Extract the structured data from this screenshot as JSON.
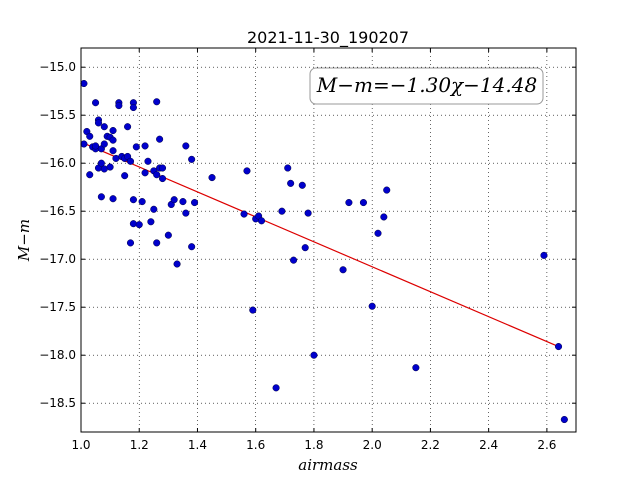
{
  "chart_data": {
    "type": "scatter",
    "title": "2021-11-30_190207",
    "xlabel": "airmass",
    "ylabel": "M−m",
    "xlim": [
      1.0,
      2.7
    ],
    "ylim": [
      -18.8,
      -14.8
    ],
    "xticks": [
      1.0,
      1.2,
      1.4,
      1.6,
      1.8,
      2.0,
      2.2,
      2.4,
      2.6
    ],
    "xtick_labels": [
      "1.0",
      "1.2",
      "1.4",
      "1.6",
      "1.8",
      "2.0",
      "2.2",
      "2.4",
      "2.6"
    ],
    "yticks": [
      -15.0,
      -15.5,
      -16.0,
      -16.5,
      -17.0,
      -17.5,
      -18.0,
      -18.5
    ],
    "ytick_labels": [
      "−15.0",
      "−15.5",
      "−16.0",
      "−16.5",
      "−17.0",
      "−17.5",
      "−18.0",
      "−18.5"
    ],
    "grid": true,
    "annotation": "M−m=−1.30χ−14.48",
    "annotation_position": "top-right",
    "point_color": "#0000cc",
    "fit_color": "#dd0000",
    "fit_line": {
      "x": [
        1.0,
        2.64
      ],
      "y": [
        -15.78,
        -17.91
      ]
    },
    "points": [
      {
        "x": 1.01,
        "y": -15.17
      },
      {
        "x": 1.01,
        "y": -15.8
      },
      {
        "x": 1.02,
        "y": -15.67
      },
      {
        "x": 1.03,
        "y": -15.72
      },
      {
        "x": 1.03,
        "y": -16.12
      },
      {
        "x": 1.04,
        "y": -15.83
      },
      {
        "x": 1.05,
        "y": -15.85
      },
      {
        "x": 1.05,
        "y": -15.37
      },
      {
        "x": 1.05,
        "y": -15.82
      },
      {
        "x": 1.06,
        "y": -15.55
      },
      {
        "x": 1.06,
        "y": -15.58
      },
      {
        "x": 1.06,
        "y": -16.05
      },
      {
        "x": 1.07,
        "y": -16.0
      },
      {
        "x": 1.07,
        "y": -16.35
      },
      {
        "x": 1.07,
        "y": -15.85
      },
      {
        "x": 1.08,
        "y": -16.06
      },
      {
        "x": 1.08,
        "y": -15.8
      },
      {
        "x": 1.08,
        "y": -15.62
      },
      {
        "x": 1.09,
        "y": -15.72
      },
      {
        "x": 1.1,
        "y": -15.73
      },
      {
        "x": 1.1,
        "y": -16.04
      },
      {
        "x": 1.11,
        "y": -15.87
      },
      {
        "x": 1.11,
        "y": -15.66
      },
      {
        "x": 1.11,
        "y": -15.76
      },
      {
        "x": 1.11,
        "y": -16.37
      },
      {
        "x": 1.12,
        "y": -15.95
      },
      {
        "x": 1.13,
        "y": -15.37
      },
      {
        "x": 1.13,
        "y": -15.4
      },
      {
        "x": 1.14,
        "y": -15.93
      },
      {
        "x": 1.15,
        "y": -16.13
      },
      {
        "x": 1.15,
        "y": -15.95
      },
      {
        "x": 1.16,
        "y": -15.93
      },
      {
        "x": 1.16,
        "y": -15.62
      },
      {
        "x": 1.17,
        "y": -16.83
      },
      {
        "x": 1.17,
        "y": -15.98
      },
      {
        "x": 1.18,
        "y": -16.38
      },
      {
        "x": 1.18,
        "y": -16.63
      },
      {
        "x": 1.18,
        "y": -15.37
      },
      {
        "x": 1.18,
        "y": -15.42
      },
      {
        "x": 1.19,
        "y": -15.83
      },
      {
        "x": 1.2,
        "y": -16.64
      },
      {
        "x": 1.21,
        "y": -16.4
      },
      {
        "x": 1.22,
        "y": -15.82
      },
      {
        "x": 1.22,
        "y": -16.1
      },
      {
        "x": 1.23,
        "y": -15.98
      },
      {
        "x": 1.24,
        "y": -16.61
      },
      {
        "x": 1.25,
        "y": -16.48
      },
      {
        "x": 1.25,
        "y": -16.08
      },
      {
        "x": 1.26,
        "y": -15.36
      },
      {
        "x": 1.26,
        "y": -16.83
      },
      {
        "x": 1.26,
        "y": -16.12
      },
      {
        "x": 1.27,
        "y": -15.75
      },
      {
        "x": 1.27,
        "y": -16.05
      },
      {
        "x": 1.28,
        "y": -16.16
      },
      {
        "x": 1.28,
        "y": -16.05
      },
      {
        "x": 1.3,
        "y": -16.75
      },
      {
        "x": 1.31,
        "y": -16.43
      },
      {
        "x": 1.32,
        "y": -16.38
      },
      {
        "x": 1.33,
        "y": -17.05
      },
      {
        "x": 1.35,
        "y": -16.4
      },
      {
        "x": 1.36,
        "y": -15.82
      },
      {
        "x": 1.36,
        "y": -16.52
      },
      {
        "x": 1.38,
        "y": -15.96
      },
      {
        "x": 1.38,
        "y": -16.87
      },
      {
        "x": 1.39,
        "y": -16.41
      },
      {
        "x": 1.45,
        "y": -16.15
      },
      {
        "x": 1.56,
        "y": -16.53
      },
      {
        "x": 1.57,
        "y": -16.08
      },
      {
        "x": 1.59,
        "y": -17.53
      },
      {
        "x": 1.6,
        "y": -16.58
      },
      {
        "x": 1.61,
        "y": -16.55
      },
      {
        "x": 1.62,
        "y": -16.6
      },
      {
        "x": 1.67,
        "y": -18.34
      },
      {
        "x": 1.69,
        "y": -16.5
      },
      {
        "x": 1.71,
        "y": -16.05
      },
      {
        "x": 1.72,
        "y": -16.21
      },
      {
        "x": 1.73,
        "y": -17.01
      },
      {
        "x": 1.76,
        "y": -16.23
      },
      {
        "x": 1.77,
        "y": -16.88
      },
      {
        "x": 1.78,
        "y": -16.52
      },
      {
        "x": 1.8,
        "y": -18.0
      },
      {
        "x": 1.9,
        "y": -17.11
      },
      {
        "x": 1.92,
        "y": -16.41
      },
      {
        "x": 1.97,
        "y": -16.41
      },
      {
        "x": 2.0,
        "y": -17.49
      },
      {
        "x": 2.02,
        "y": -16.73
      },
      {
        "x": 2.04,
        "y": -16.56
      },
      {
        "x": 2.05,
        "y": -16.28
      },
      {
        "x": 2.15,
        "y": -18.13
      },
      {
        "x": 2.59,
        "y": -16.96
      },
      {
        "x": 2.64,
        "y": -17.91
      },
      {
        "x": 2.66,
        "y": -18.67
      }
    ]
  }
}
